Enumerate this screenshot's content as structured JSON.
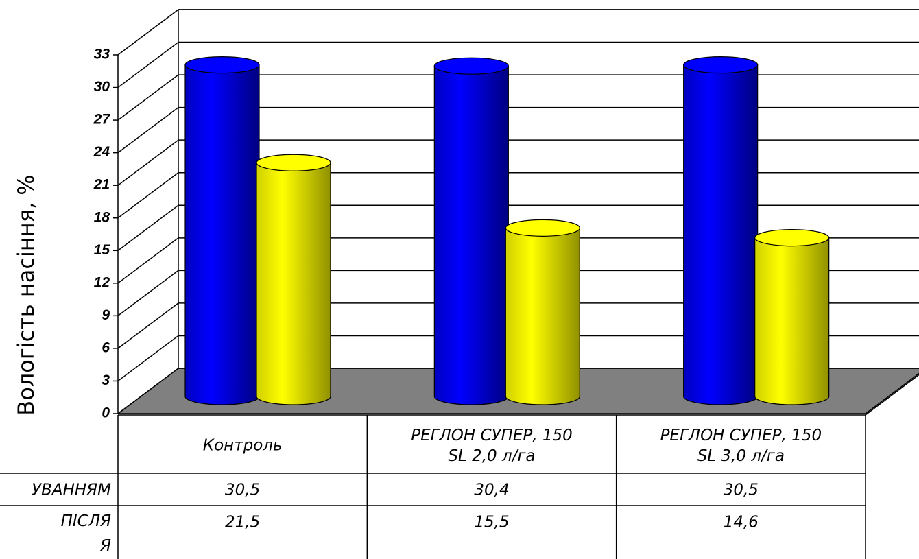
{
  "chart_data": {
    "type": "bar3d",
    "y_label": "Вологість насіння, %",
    "categories": [
      "Контроль",
      "РЕГЛОН СУПЕР, 150\nSL  2,0 л/га",
      "РЕГЛОН СУПЕР, 150\nSL  3,0 л/га"
    ],
    "series": [
      {
        "name": "УВАННЯМ",
        "color": "#0000ff",
        "values": [
          30.5,
          30.4,
          30.5
        ],
        "value_labels": [
          "30,5",
          "30,4",
          "30,5"
        ]
      },
      {
        "name": "ПІСЛЯ\nЯ",
        "color": "#ffff00",
        "values": [
          21.5,
          15.5,
          14.6
        ],
        "value_labels": [
          "21,5",
          "15,5",
          "14,6"
        ]
      }
    ],
    "ylim": [
      0,
      33
    ],
    "yticks": [
      0,
      3,
      6,
      9,
      12,
      15,
      18,
      21,
      24,
      27,
      30,
      33
    ],
    "grid": true,
    "data_table": true
  }
}
